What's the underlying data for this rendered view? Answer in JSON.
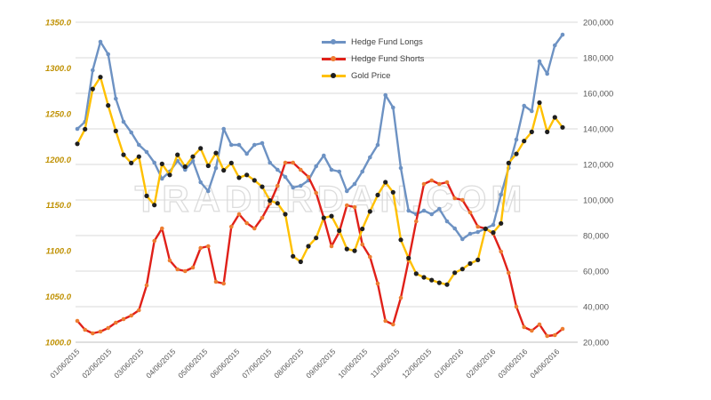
{
  "watermark": {
    "text": "TRADERDAN.COM",
    "color": "#d9d9d9"
  },
  "chart_data": {
    "type": "line",
    "title": "",
    "grid": true,
    "legend_position": "top-center",
    "x_tick_labels": [
      "01/06/2015",
      "02/06/2015",
      "03/06/2015",
      "04/06/2015",
      "05/06/2015",
      "06/06/2015",
      "07/06/2015",
      "08/06/2015",
      "09/06/2015",
      "10/06/2015",
      "11/06/2015",
      "12/06/2015",
      "01/06/2016",
      "02/06/2016",
      "03/06/2016",
      "04/06/2016"
    ],
    "left_axis": {
      "min": 1000,
      "max": 1350,
      "tick_labels": [
        "1350.0",
        "1300.0",
        "1250.0",
        "1200.0",
        "1150.0",
        "1100.0",
        "1050.0",
        "1000.0"
      ],
      "label_color": "#bf9000"
    },
    "right_axis": {
      "min": 20000,
      "max": 200000,
      "tick_labels": [
        "200,000",
        "180,000",
        "160,000",
        "140,000",
        "120,000",
        "100,000",
        "80,000",
        "60,000",
        "40,000",
        "20,000"
      ],
      "label_color": "#595959"
    },
    "series": [
      {
        "name": "Hedge Fund Longs",
        "axis": "right",
        "color": "#6d92c3",
        "marker_color": "#6d92c3",
        "values": [
          140000,
          144000,
          173000,
          189000,
          182000,
          157000,
          144000,
          138000,
          131000,
          127000,
          121000,
          112000,
          116000,
          122000,
          117000,
          122000,
          110000,
          105000,
          118000,
          140000,
          131000,
          131000,
          126000,
          131000,
          132000,
          121000,
          117000,
          113000,
          107000,
          108000,
          111000,
          119000,
          125000,
          117000,
          116000,
          105000,
          109000,
          116000,
          124000,
          131000,
          159000,
          152000,
          118000,
          94000,
          92000,
          94000,
          92000,
          95000,
          88000,
          84000,
          78000,
          81000,
          82000,
          84000,
          86000,
          103000,
          118000,
          134000,
          153000,
          150000,
          178000,
          171000,
          187000,
          193000
        ]
      },
      {
        "name": "Hedge Fund Shorts",
        "axis": "right",
        "color": "#e02019",
        "marker_color": "#ed7d31",
        "values": [
          32000,
          27000,
          25000,
          26000,
          28000,
          31000,
          33000,
          35000,
          38000,
          52000,
          77000,
          84000,
          66000,
          61000,
          60000,
          62000,
          73000,
          74000,
          54000,
          53000,
          85000,
          92000,
          87000,
          84000,
          90000,
          98000,
          108000,
          121000,
          121000,
          117000,
          113000,
          104000,
          90000,
          74000,
          82000,
          97000,
          96000,
          75000,
          68000,
          53000,
          32000,
          30000,
          45000,
          66000,
          88000,
          109000,
          111000,
          109000,
          110000,
          101000,
          100000,
          93000,
          85000,
          84000,
          81000,
          71000,
          59000,
          40000,
          28500,
          26500,
          30000,
          23500,
          24000,
          27500
        ]
      },
      {
        "name": "Gold Price",
        "axis": "left",
        "color": "#ffc000",
        "marker_color": "#1f1f1f",
        "values": [
          1217,
          1233,
          1277,
          1290,
          1259,
          1231,
          1205,
          1196,
          1203,
          1160,
          1150,
          1195,
          1183,
          1205,
          1192,
          1203,
          1212,
          1193,
          1207,
          1188,
          1196,
          1180,
          1183,
          1177,
          1170,
          1155,
          1152,
          1140,
          1094,
          1088,
          1105,
          1114,
          1136,
          1138,
          1122,
          1102,
          1100,
          1124,
          1143,
          1161,
          1175,
          1164,
          1112,
          1092,
          1075,
          1071,
          1068,
          1065,
          1063,
          1076,
          1080,
          1086,
          1090,
          1124,
          1120,
          1130,
          1196,
          1206,
          1220,
          1230,
          1262,
          1230,
          1246,
          1235
        ]
      }
    ]
  }
}
